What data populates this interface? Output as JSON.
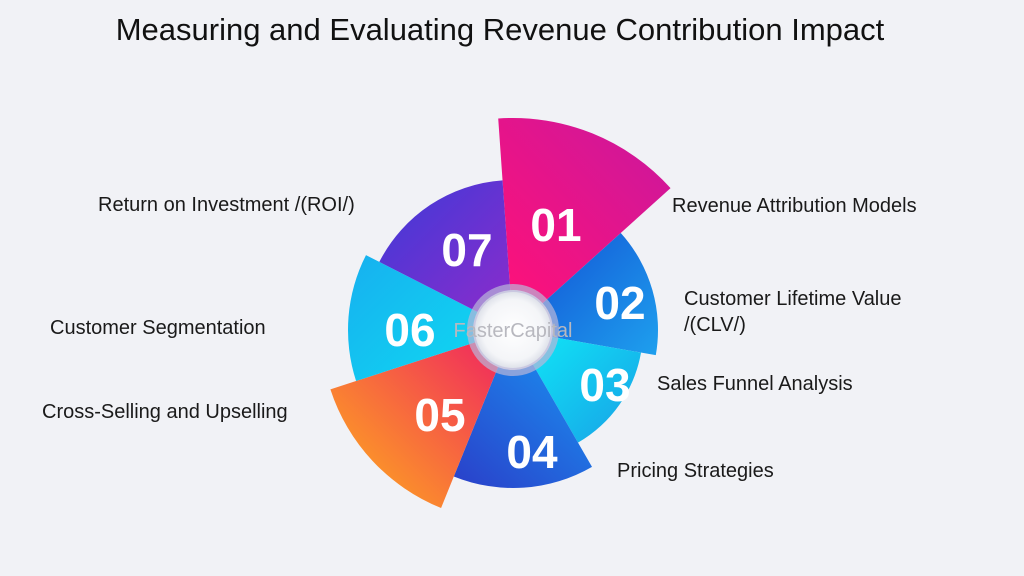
{
  "title": "Measuring and Evaluating Revenue Contribution Impact",
  "watermark": "FasterCapital",
  "segments": [
    {
      "number": "01",
      "label": "Revenue Attribution Models",
      "color_start": "#e8127a",
      "color_end": "#c8179a"
    },
    {
      "number": "02",
      "label_lines": [
        "Customer Lifetime Value",
        "/(CLV/)"
      ],
      "color_start": "#1b8fe6",
      "color_end": "#1356d6"
    },
    {
      "number": "03",
      "label": "Sales Funnel Analysis",
      "color_start": "#0fe0f5",
      "color_end": "#19a8ea"
    },
    {
      "number": "04",
      "label": "Pricing Strategies",
      "color_start": "#1570e6",
      "color_end": "#2a3fc9"
    },
    {
      "number": "05",
      "label": "Cross-Selling and Upselling",
      "color_start": "#ffb01a",
      "color_end": "#f2365c"
    },
    {
      "number": "06",
      "label": "Customer Segmentation",
      "color_start": "#1ab8f0",
      "color_end": "#10d8f2"
    },
    {
      "number": "07",
      "label": "Return on Investment /(ROI/)",
      "color_start": "#4a3ad6",
      "color_end": "#7a2ecc"
    }
  ]
}
